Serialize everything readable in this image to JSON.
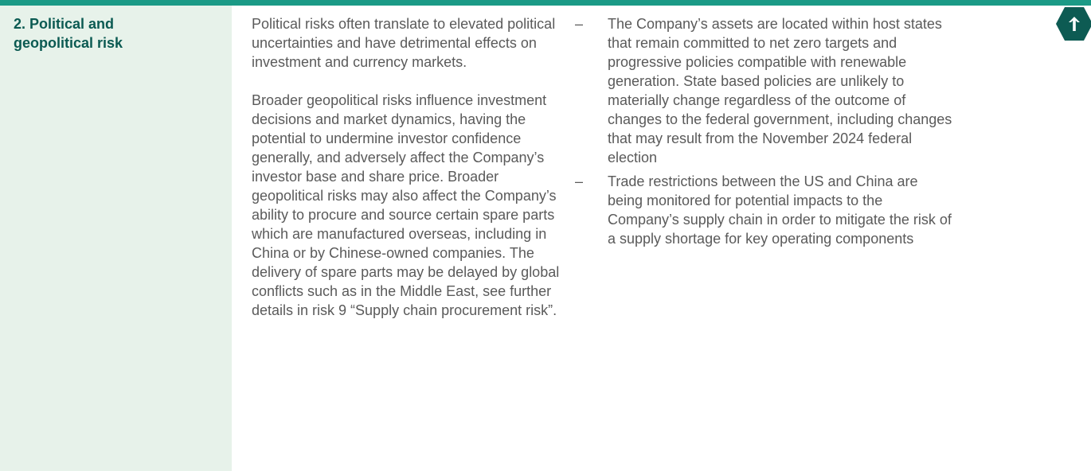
{
  "row": {
    "title": "2. Political and geopolitical risk",
    "description": [
      "Political risks often translate to elevated political uncertainties and have detrimental effects on investment and currency markets.",
      "Broader geopolitical risks influence investment decisions and market dynamics, having the potential to undermine investor confidence generally, and adversely affect the Company’s investor base and share price. Broader geopolitical risks may also affect the Company’s ability to procure and source certain spare parts which are manufactured overseas, including in China or by Chinese-owned companies. The delivery of spare parts may be delayed by global conflicts such as in the Middle East, see further details in risk 9 “Supply chain procurement risk”."
    ],
    "mitigations": [
      "The Company’s assets are located within host states that remain committed to net zero targets and progressive policies compatible with renewable generation. State based policies are unlikely to materially change regardless of the outcome of changes to the federal government, including changes that may result from the November 2024 federal election",
      "Trade restrictions between the US and China are being monitored for potential impacts to the Company’s supply chain in order to mitigate the risk of a supply shortage for key operating components"
    ]
  }
}
